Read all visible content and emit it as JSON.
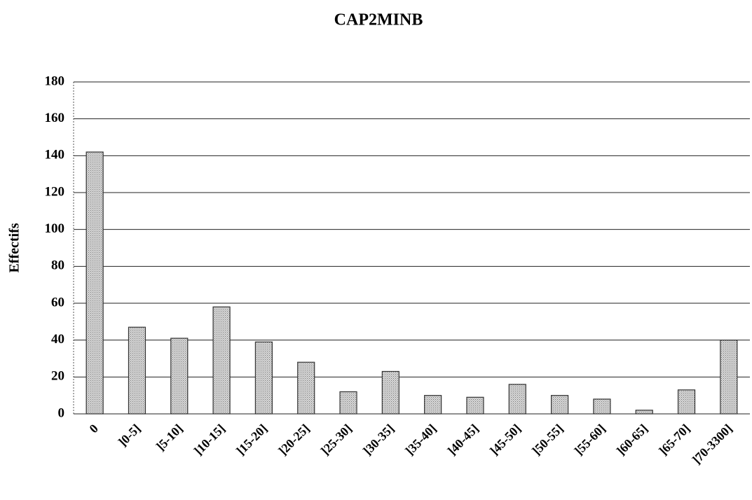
{
  "chart_data": {
    "type": "bar",
    "title": "CAP2MINB",
    "y_label": "Effectifs",
    "categories": [
      "0",
      "]0-5]",
      "]5-10]",
      "]10-15]",
      "]15-20]",
      "]20-25]",
      "]25-30]",
      "]30-35]",
      "]35-40]",
      "]40-45]",
      "]45-50]",
      "]50-55]",
      "]55-60]",
      "]60-65]",
      "]65-70]",
      "]70-3300]"
    ],
    "values": [
      142,
      47,
      41,
      58,
      39,
      28,
      12,
      23,
      10,
      9,
      16,
      10,
      8,
      2,
      13,
      40
    ],
    "color": "#bdbdbd",
    "ylim": [
      0,
      180
    ],
    "yticks": [
      0,
      20,
      40,
      60,
      80,
      100,
      120,
      140,
      160,
      180
    ],
    "grid": true
  }
}
